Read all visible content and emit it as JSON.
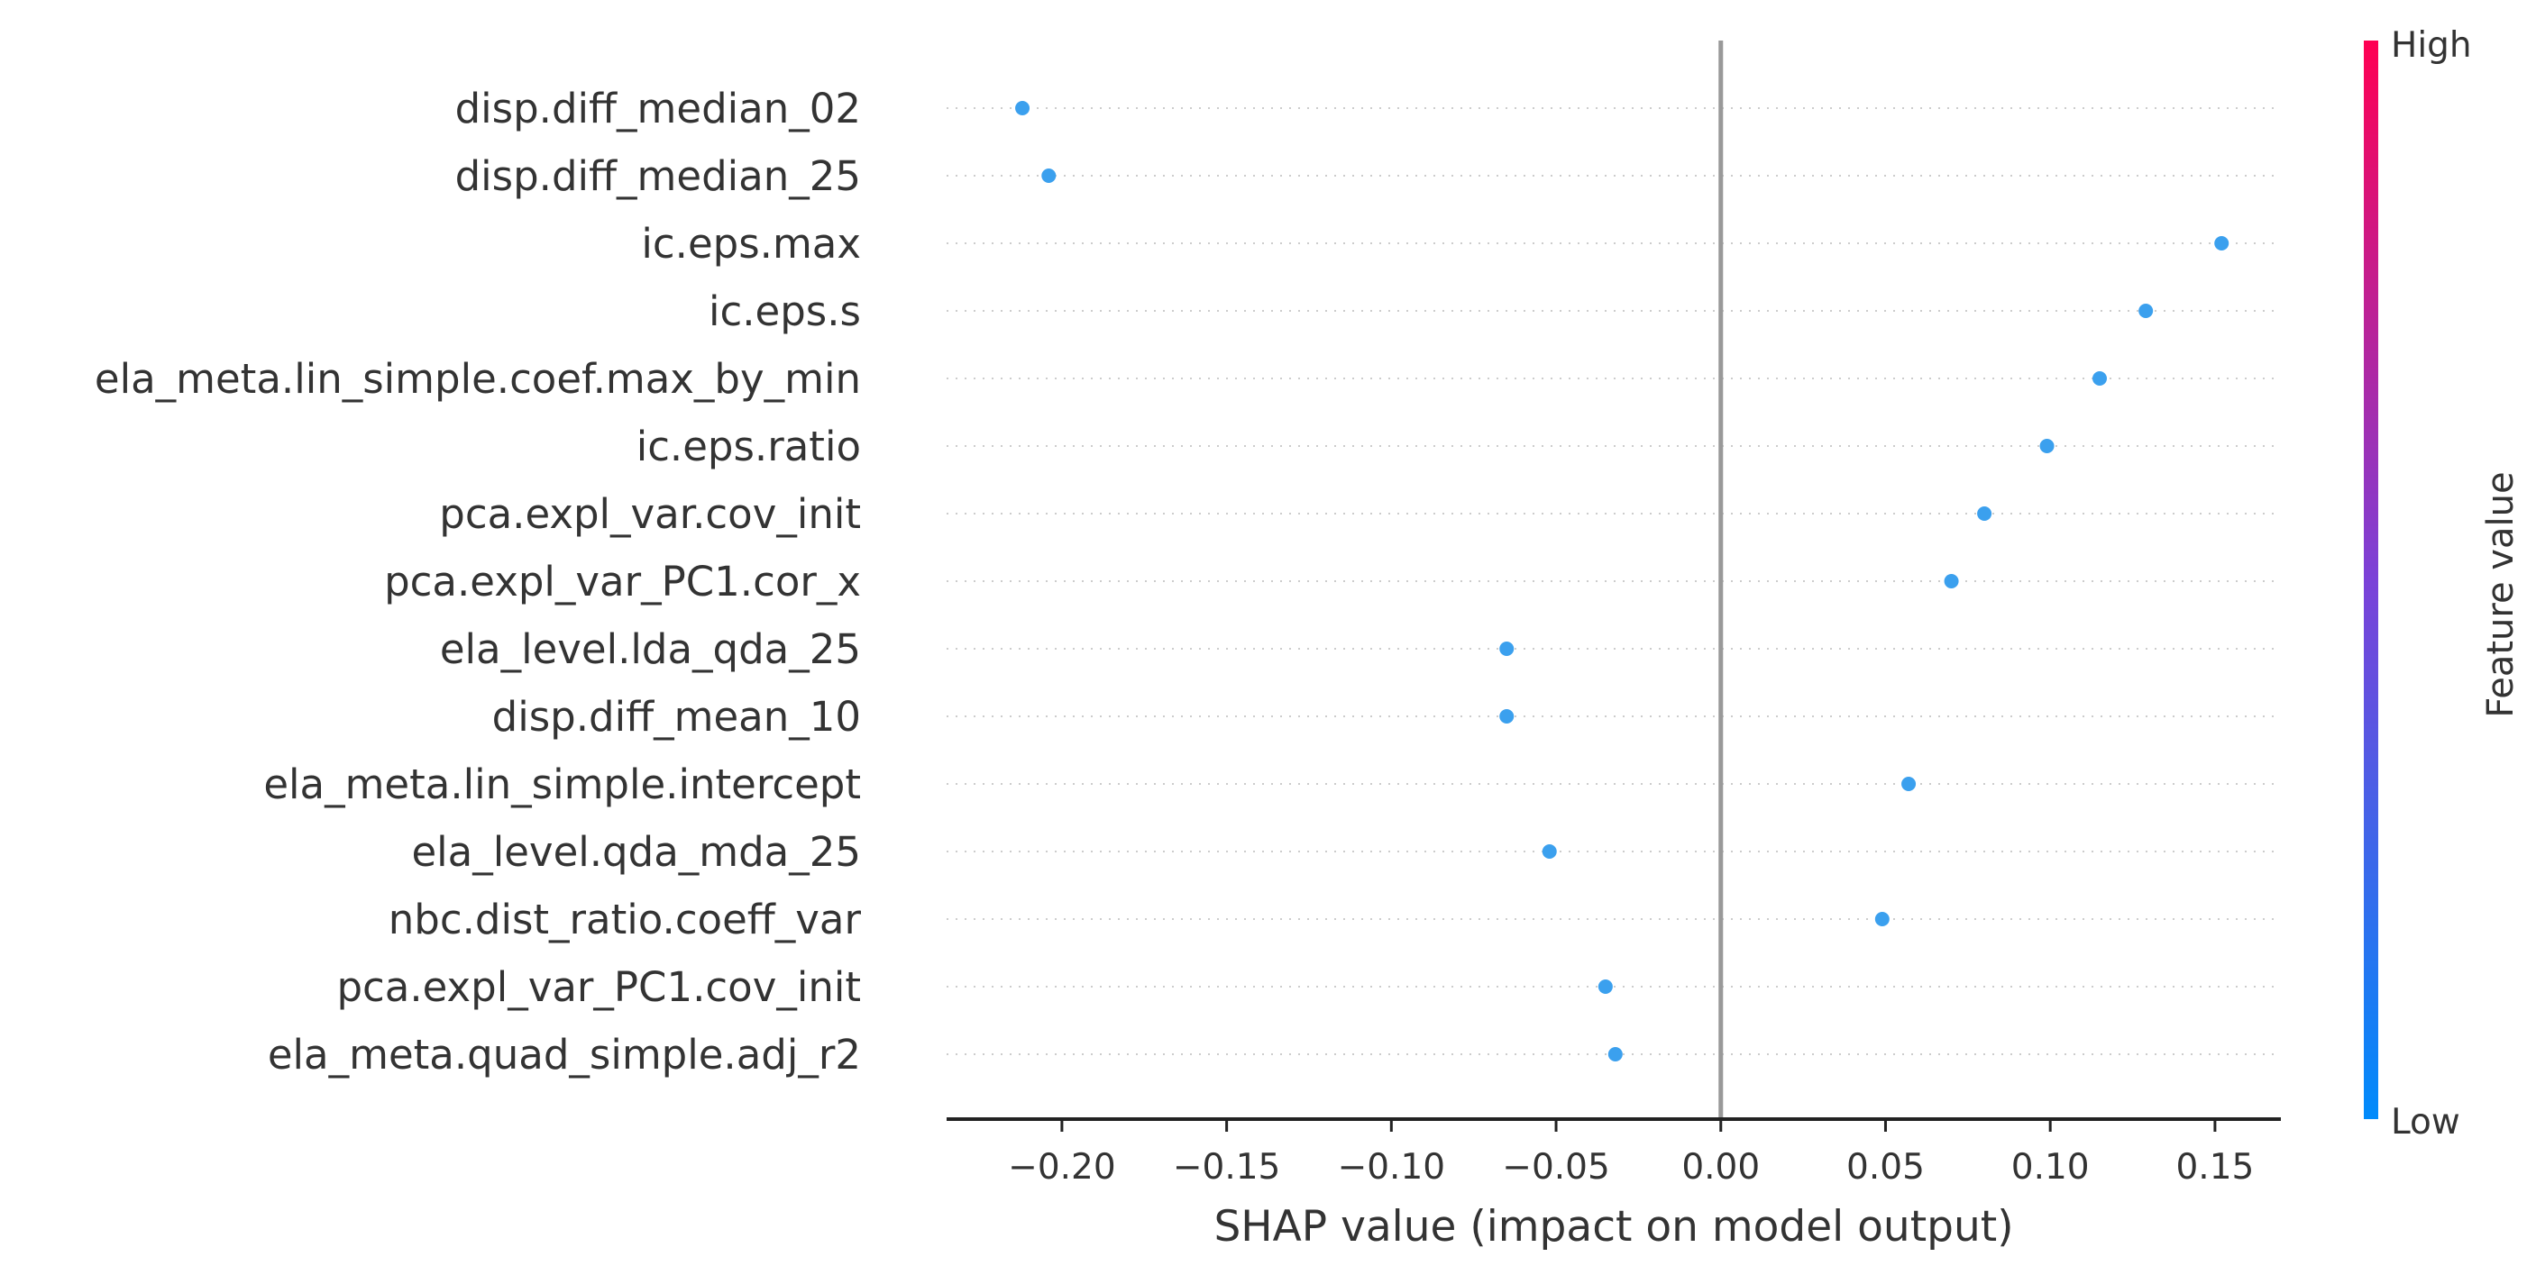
{
  "chart_data": {
    "type": "scatter",
    "title": "",
    "xlabel": "SHAP value (impact on model output)",
    "xlim": [
      -0.235,
      0.17
    ],
    "xticks": [
      -0.2,
      -0.15,
      -0.1,
      -0.05,
      0.0,
      0.05,
      0.1,
      0.15
    ],
    "xtick_labels": [
      "−0.20",
      "−0.15",
      "−0.10",
      "−0.05",
      "0.00",
      "0.05",
      "0.10",
      "0.15"
    ],
    "features": [
      {
        "name": "disp.diff_median_02",
        "shap": -0.212
      },
      {
        "name": "disp.diff_median_25",
        "shap": -0.204
      },
      {
        "name": "ic.eps.max",
        "shap": 0.152
      },
      {
        "name": "ic.eps.s",
        "shap": 0.129
      },
      {
        "name": "ela_meta.lin_simple.coef.max_by_min",
        "shap": 0.115
      },
      {
        "name": "ic.eps.ratio",
        "shap": 0.099
      },
      {
        "name": "pca.expl_var.cov_init",
        "shap": 0.08
      },
      {
        "name": "pca.expl_var_PC1.cor_x",
        "shap": 0.07
      },
      {
        "name": "ela_level.lda_qda_25",
        "shap": -0.065
      },
      {
        "name": "disp.diff_mean_10",
        "shap": -0.065
      },
      {
        "name": "ela_meta.lin_simple.intercept",
        "shap": 0.057
      },
      {
        "name": "ela_level.qda_mda_25",
        "shap": -0.052
      },
      {
        "name": "nbc.dist_ratio.coeff_var",
        "shap": 0.049
      },
      {
        "name": "pca.expl_var_PC1.cov_init",
        "shap": -0.035
      },
      {
        "name": "ela_meta.quad_simple.adj_r2",
        "shap": -0.032
      }
    ],
    "point_color": "#3ba0ee",
    "zero_line_color": "#999999",
    "grid": "dotted horizontal rows",
    "colorbar": {
      "title": "Feature value",
      "high_label": "High",
      "low_label": "Low",
      "high_color": "#ff0052",
      "mid_color": "#7b41d8",
      "low_color": "#008bfb"
    }
  }
}
